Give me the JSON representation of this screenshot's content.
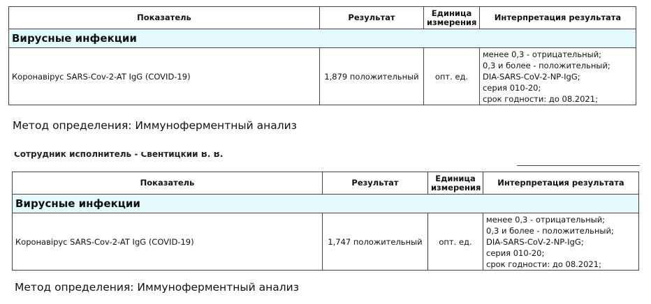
{
  "blocks": [
    {
      "table": {
        "header": [
          "Показатель",
          "Результат",
          "Единица измерения",
          "Интерпретация результата"
        ],
        "section": "Вирусные инфекции",
        "rows": [
          [
            "Коронавірус SARS-Cov-2-AT IgG (COVID-19)",
            "1,879 положительный",
            "опт. ед.",
            [
              "менее 0,3 - отрицательный;",
              "0,3 и более - положительный;",
              "DIA-SARS-CoV-2-NP-IgG;",
              "серия 010-20;",
              "срок годности: до 08.2021;"
            ]
          ]
        ]
      },
      "method": "Метод определения: Иммуноферментный анализ"
    },
    {
      "table": {
        "header": [
          "Показатель",
          "Результат",
          "Единица измерения",
          "Интерпретация результата"
        ],
        "section": "Вирусные инфекции",
        "rows": [
          [
            "Коронавірус SARS-Cov-2-AT IgG (COVID-19)",
            "1,747 положительный",
            "опт. ед.",
            [
              "менее 0,3 - отрицательный;",
              "0,3 и более - положительный;",
              "DIA-SARS-CoV-2-NP-IgG;",
              "серия 010-20;",
              "срок годности: до 08.2021;"
            ]
          ]
        ]
      },
      "method": "Метод определения: Иммуноферментный анализ"
    }
  ],
  "staff": "Сотрудник исполнитель - Свентицкий В. В."
}
